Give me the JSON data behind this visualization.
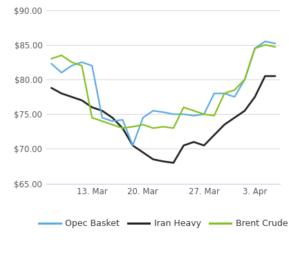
{
  "x_labels": [
    "13. Mar",
    "20. Mar",
    "27. Mar",
    "3. Apr"
  ],
  "opec_basket": [
    82.3,
    81.0,
    82.0,
    82.5,
    82.0,
    74.5,
    74.0,
    74.2,
    70.5,
    74.5,
    75.5,
    75.3,
    75.0,
    75.0,
    74.8,
    75.0,
    78.0,
    78.0,
    77.5,
    80.0,
    84.5,
    85.5,
    85.2
  ],
  "iran_heavy": [
    78.8,
    78.0,
    77.5,
    77.0,
    76.0,
    75.5,
    74.5,
    73.0,
    70.5,
    69.5,
    68.5,
    68.2,
    68.0,
    70.5,
    71.0,
    70.5,
    72.0,
    73.5,
    74.5,
    75.5,
    77.5,
    80.5,
    80.5
  ],
  "brent_crude": [
    83.0,
    83.5,
    82.5,
    82.0,
    74.5,
    74.0,
    73.5,
    73.0,
    73.2,
    73.5,
    73.0,
    73.2,
    73.0,
    76.0,
    75.5,
    75.0,
    74.8,
    78.0,
    78.5,
    80.0,
    84.5,
    85.0,
    84.7
  ],
  "opec_color": "#5aabde",
  "iran_color": "#222222",
  "brent_color": "#82c01e",
  "ylim": [
    65,
    90
  ],
  "yticks": [
    65,
    70,
    75,
    80,
    85,
    90
  ],
  "background_color": "#ffffff",
  "grid_color": "#d5d5d5",
  "legend_labels": [
    "Opec Basket",
    "Iran Heavy",
    "Brent Crude"
  ],
  "n_points": 23,
  "x_tick_positions": [
    4,
    9,
    15,
    20
  ]
}
